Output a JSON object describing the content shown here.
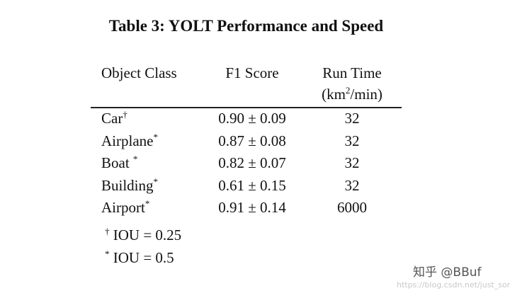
{
  "title": "Table 3: YOLT Performance and Speed",
  "table": {
    "header": {
      "class": "Object Class",
      "f1": "F1 Score",
      "runtime": "Run Time",
      "unit_open": "(km",
      "unit_exp": "2",
      "unit_close": "/min)"
    },
    "rows": [
      {
        "class": "Car",
        "mark": "†",
        "f1": "0.90 ± 0.09",
        "runtime": "32"
      },
      {
        "class": "Airplane",
        "mark": "*",
        "f1": "0.87 ± 0.08",
        "runtime": "32"
      },
      {
        "class": "Boat ",
        "mark": "*",
        "f1": "0.82 ± 0.07",
        "runtime": "32"
      },
      {
        "class": "Building",
        "mark": "*",
        "f1": "0.61 ± 0.15",
        "runtime": "32"
      },
      {
        "class": "Airport",
        "mark": "*",
        "f1": "0.91 ± 0.14",
        "runtime": "6000"
      }
    ],
    "notes": [
      {
        "mark": "†",
        "text": "IOU = 0.25"
      },
      {
        "mark": "*",
        "text": "IOU = 0.5"
      }
    ]
  },
  "watermark": {
    "brand": "知乎 @BBuf",
    "url": "https://blog.csdn.net/just_sort"
  }
}
